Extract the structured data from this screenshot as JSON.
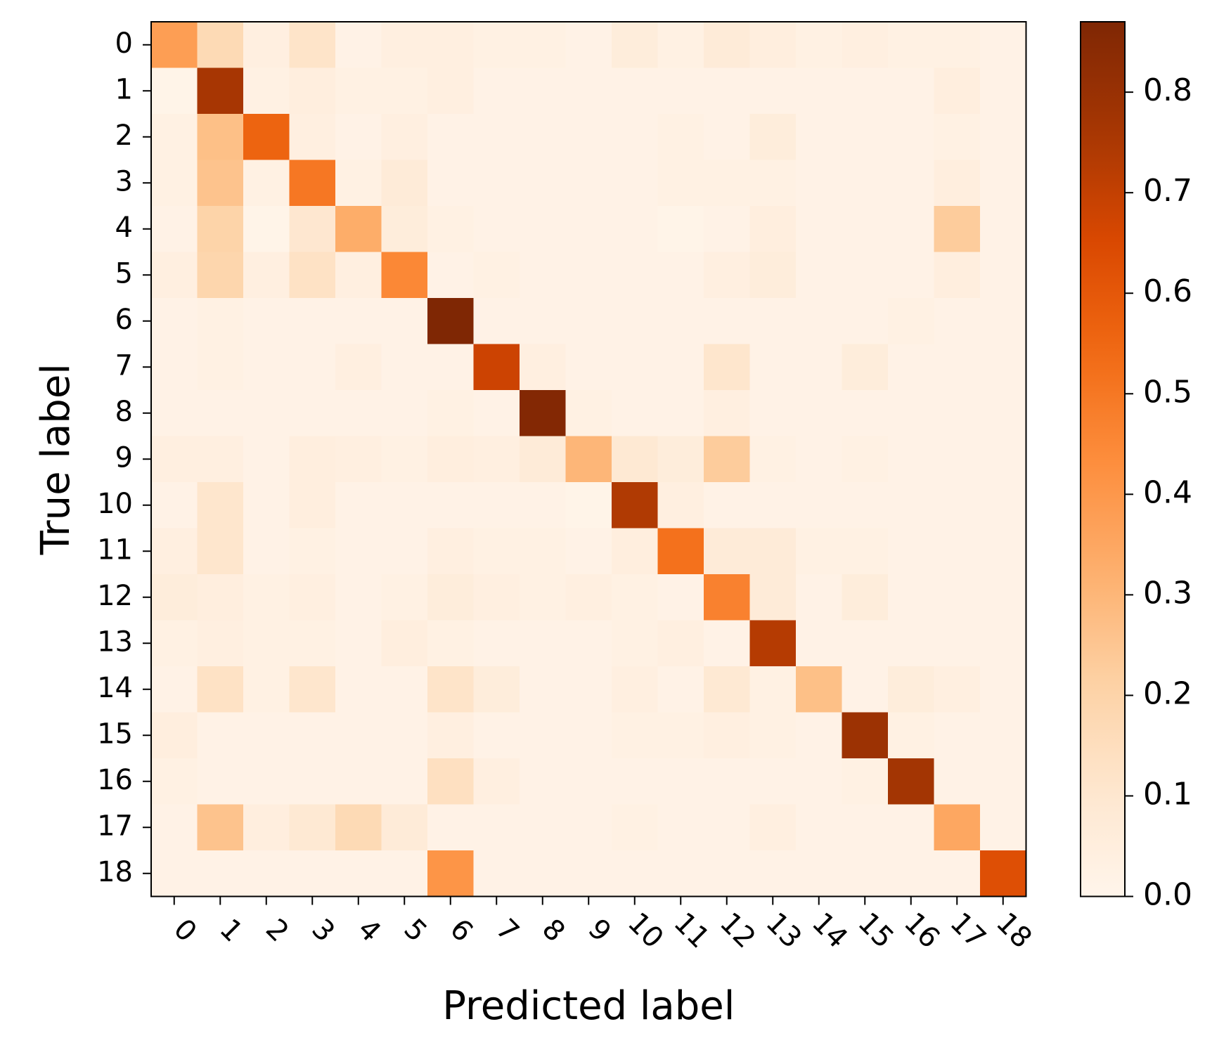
{
  "chart_data": {
    "type": "heatmap",
    "title": "",
    "xlabel": "Predicted label",
    "ylabel": "True label",
    "x_categories": [
      "0",
      "1",
      "2",
      "3",
      "4",
      "5",
      "6",
      "7",
      "8",
      "9",
      "10",
      "11",
      "12",
      "13",
      "14",
      "15",
      "16",
      "17",
      "18"
    ],
    "y_categories": [
      "0",
      "1",
      "2",
      "3",
      "4",
      "5",
      "6",
      "7",
      "8",
      "9",
      "10",
      "11",
      "12",
      "13",
      "14",
      "15",
      "16",
      "17",
      "18"
    ],
    "colormap": "Oranges",
    "colorbar": {
      "range": [
        0.0,
        0.87
      ],
      "ticks": [
        "0.0",
        "0.1",
        "0.2",
        "0.3",
        "0.4",
        "0.5",
        "0.6",
        "0.7",
        "0.8"
      ],
      "tick_values": [
        0.0,
        0.1,
        0.2,
        0.3,
        0.4,
        0.5,
        0.6,
        0.7,
        0.8
      ]
    },
    "x_tick_rotation_deg": 45,
    "grid": false,
    "values": [
      [
        0.38,
        0.17,
        0.04,
        0.12,
        0.02,
        0.04,
        0.04,
        0.03,
        0.03,
        0.02,
        0.06,
        0.03,
        0.07,
        0.05,
        0.03,
        0.04,
        0.03,
        0.03,
        0.02
      ],
      [
        0.01,
        0.76,
        0.03,
        0.05,
        0.03,
        0.03,
        0.04,
        0.02,
        0.02,
        0.02,
        0.02,
        0.02,
        0.02,
        0.02,
        0.02,
        0.02,
        0.02,
        0.05,
        0.02
      ],
      [
        0.03,
        0.27,
        0.56,
        0.04,
        0.02,
        0.04,
        0.02,
        0.02,
        0.02,
        0.02,
        0.02,
        0.03,
        0.02,
        0.06,
        0.02,
        0.02,
        0.02,
        0.03,
        0.02
      ],
      [
        0.03,
        0.26,
        0.03,
        0.5,
        0.03,
        0.07,
        0.02,
        0.02,
        0.02,
        0.02,
        0.02,
        0.03,
        0.03,
        0.03,
        0.02,
        0.02,
        0.02,
        0.05,
        0.02
      ],
      [
        0.02,
        0.2,
        0.01,
        0.1,
        0.33,
        0.06,
        0.03,
        0.02,
        0.02,
        0.02,
        0.02,
        0.01,
        0.02,
        0.05,
        0.02,
        0.02,
        0.02,
        0.23,
        0.02
      ],
      [
        0.04,
        0.19,
        0.04,
        0.13,
        0.04,
        0.45,
        0.02,
        0.03,
        0.02,
        0.02,
        0.02,
        0.02,
        0.04,
        0.06,
        0.02,
        0.02,
        0.02,
        0.05,
        0.02
      ],
      [
        0.02,
        0.03,
        0.02,
        0.02,
        0.02,
        0.02,
        0.87,
        0.02,
        0.02,
        0.02,
        0.02,
        0.02,
        0.02,
        0.02,
        0.02,
        0.02,
        0.03,
        0.02,
        0.02
      ],
      [
        0.02,
        0.03,
        0.02,
        0.02,
        0.04,
        0.02,
        0.02,
        0.68,
        0.04,
        0.02,
        0.02,
        0.02,
        0.11,
        0.02,
        0.02,
        0.06,
        0.02,
        0.02,
        0.02
      ],
      [
        0.02,
        0.02,
        0.02,
        0.02,
        0.02,
        0.02,
        0.03,
        0.02,
        0.86,
        0.03,
        0.02,
        0.02,
        0.04,
        0.02,
        0.02,
        0.02,
        0.02,
        0.02,
        0.02
      ],
      [
        0.04,
        0.04,
        0.02,
        0.05,
        0.04,
        0.03,
        0.05,
        0.04,
        0.07,
        0.3,
        0.09,
        0.06,
        0.23,
        0.03,
        0.02,
        0.03,
        0.02,
        0.02,
        0.02
      ],
      [
        0.02,
        0.11,
        0.02,
        0.05,
        0.02,
        0.02,
        0.02,
        0.02,
        0.02,
        0.01,
        0.74,
        0.04,
        0.02,
        0.02,
        0.02,
        0.02,
        0.02,
        0.02,
        0.02
      ],
      [
        0.04,
        0.11,
        0.02,
        0.03,
        0.02,
        0.02,
        0.04,
        0.03,
        0.03,
        0.02,
        0.05,
        0.52,
        0.07,
        0.07,
        0.03,
        0.03,
        0.02,
        0.02,
        0.02
      ],
      [
        0.06,
        0.05,
        0.03,
        0.04,
        0.02,
        0.03,
        0.06,
        0.04,
        0.03,
        0.04,
        0.03,
        0.02,
        0.47,
        0.07,
        0.02,
        0.06,
        0.02,
        0.02,
        0.02
      ],
      [
        0.03,
        0.04,
        0.03,
        0.03,
        0.02,
        0.05,
        0.03,
        0.02,
        0.02,
        0.02,
        0.03,
        0.04,
        0.02,
        0.73,
        0.02,
        0.02,
        0.02,
        0.02,
        0.02
      ],
      [
        0.02,
        0.13,
        0.03,
        0.11,
        0.02,
        0.02,
        0.12,
        0.06,
        0.02,
        0.02,
        0.04,
        0.02,
        0.09,
        0.03,
        0.27,
        0.02,
        0.06,
        0.04,
        0.02
      ],
      [
        0.05,
        0.02,
        0.02,
        0.02,
        0.02,
        0.02,
        0.04,
        0.02,
        0.02,
        0.02,
        0.03,
        0.03,
        0.04,
        0.03,
        0.02,
        0.79,
        0.03,
        0.02,
        0.02
      ],
      [
        0.03,
        0.02,
        0.02,
        0.02,
        0.02,
        0.02,
        0.14,
        0.04,
        0.02,
        0.02,
        0.02,
        0.02,
        0.02,
        0.02,
        0.02,
        0.03,
        0.77,
        0.02,
        0.02
      ],
      [
        0.02,
        0.26,
        0.05,
        0.09,
        0.17,
        0.07,
        0.02,
        0.02,
        0.02,
        0.02,
        0.03,
        0.02,
        0.02,
        0.04,
        0.02,
        0.02,
        0.02,
        0.35,
        0.02
      ],
      [
        0.02,
        0.02,
        0.02,
        0.02,
        0.02,
        0.02,
        0.41,
        0.02,
        0.02,
        0.02,
        0.02,
        0.02,
        0.02,
        0.02,
        0.02,
        0.02,
        0.02,
        0.02,
        0.63
      ]
    ]
  }
}
